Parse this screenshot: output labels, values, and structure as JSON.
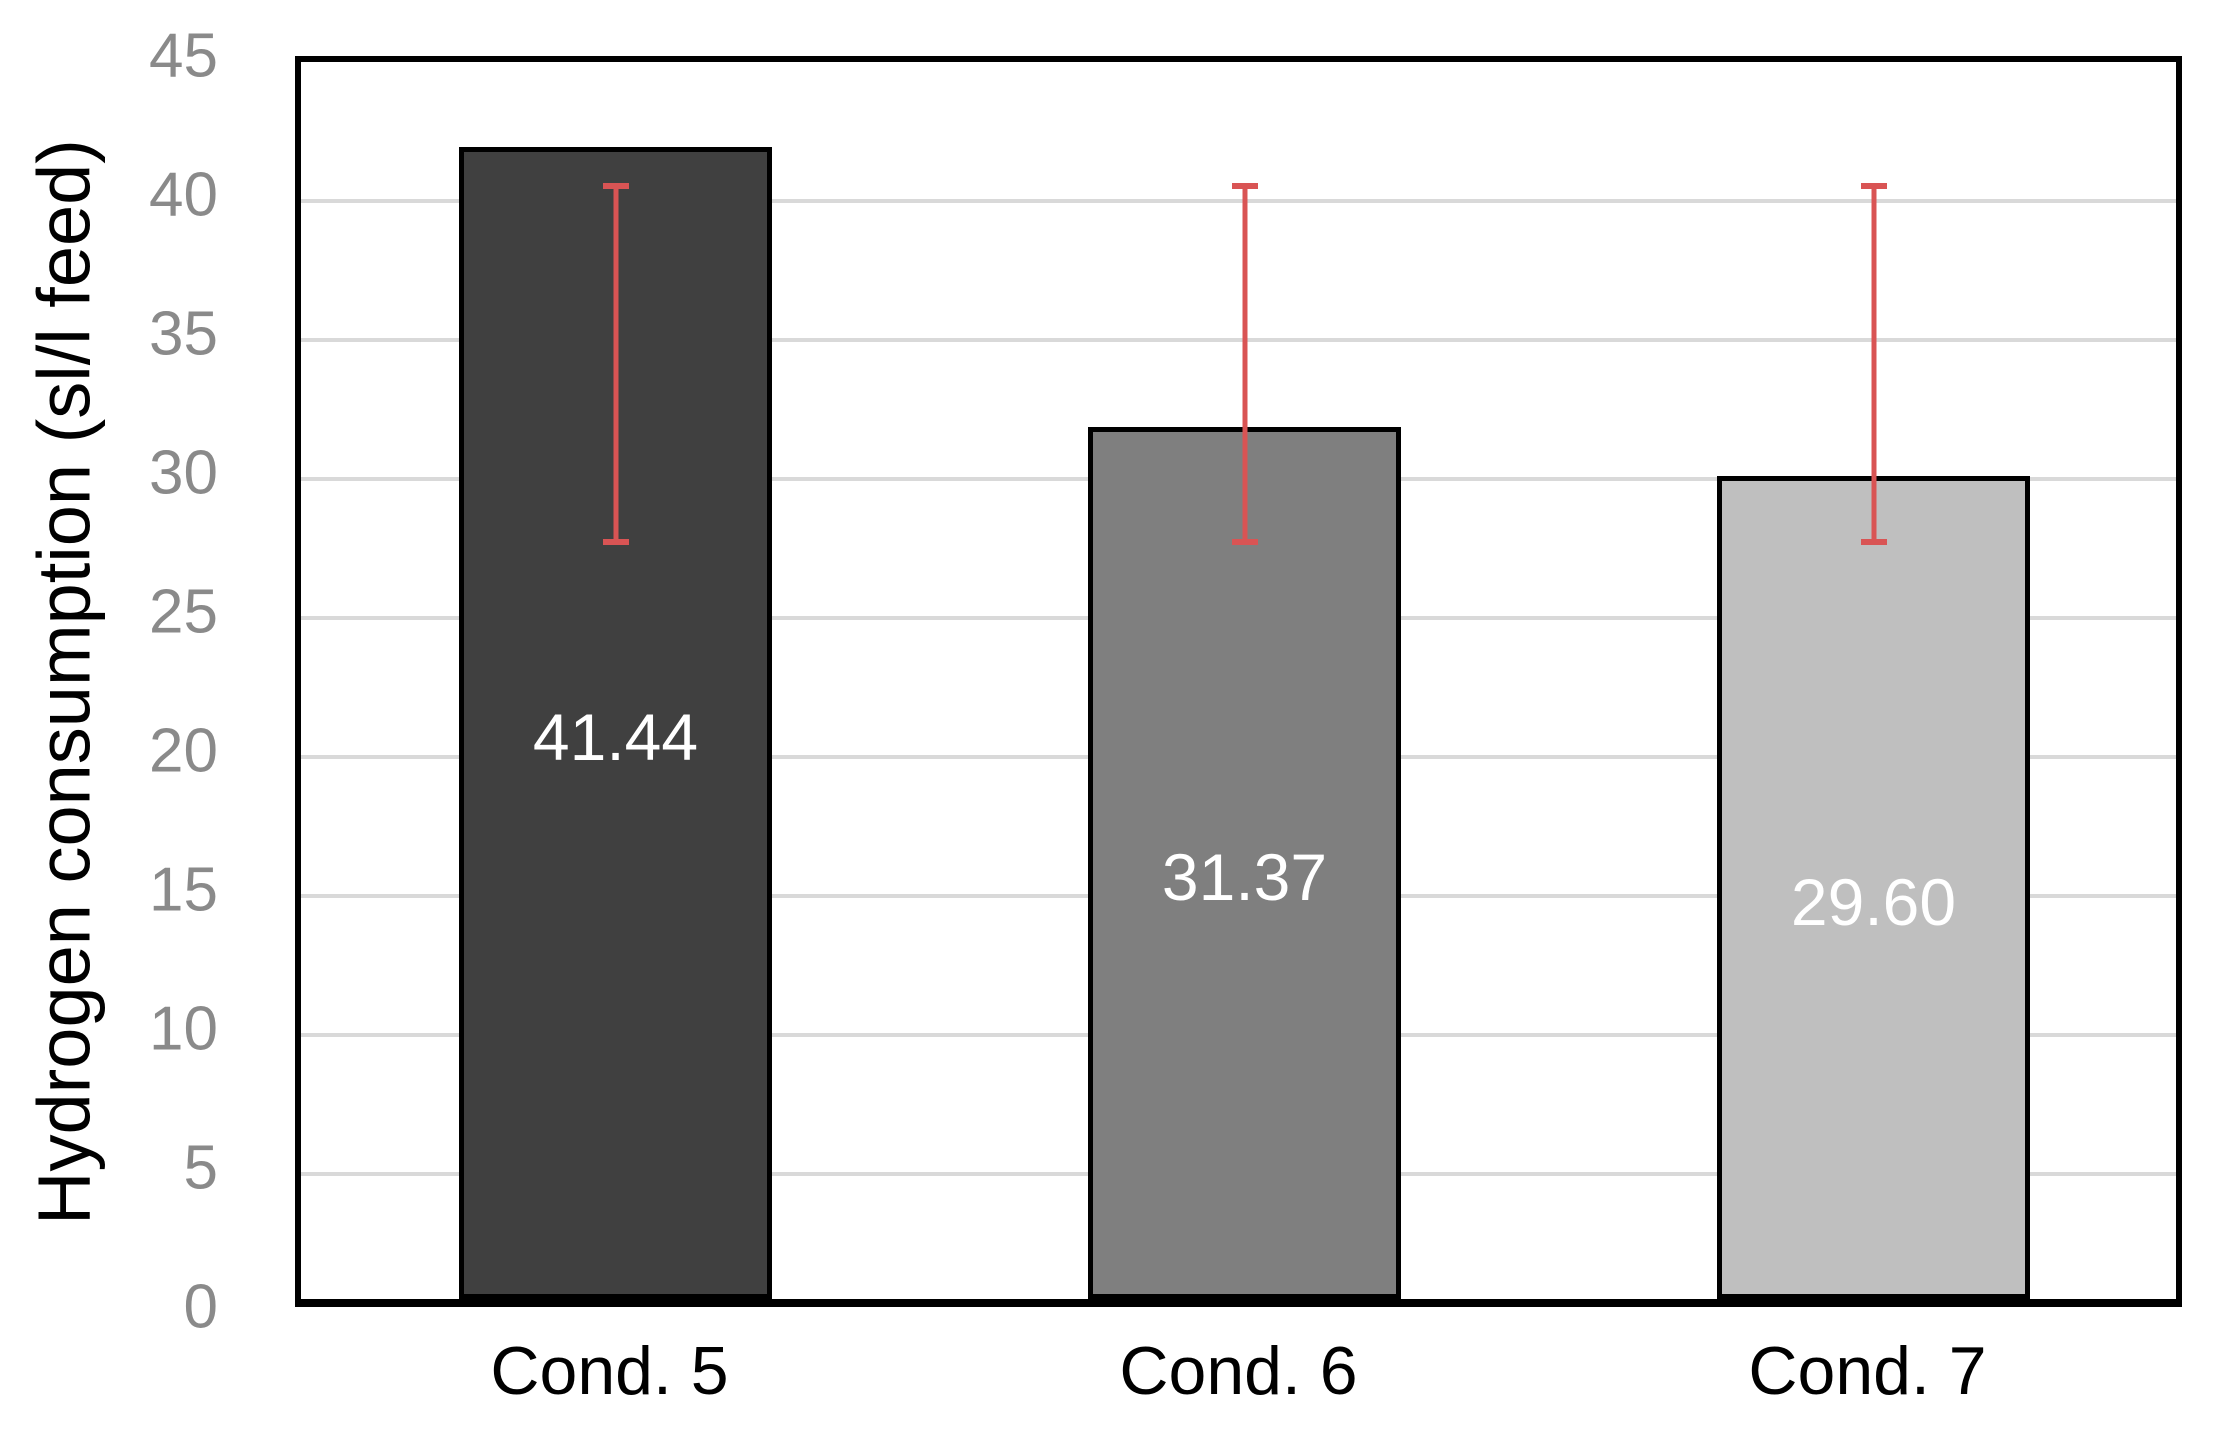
{
  "chart_data": {
    "type": "bar",
    "title": "",
    "xlabel": "",
    "ylabel": "Hydrogen consumption (sl/l feed)",
    "categories": [
      "Cond. 5",
      "Cond. 6",
      "Cond. 7"
    ],
    "values": [
      41.44,
      31.37,
      29.6
    ],
    "data_labels": [
      "41.44",
      "31.37",
      "29.60"
    ],
    "ylim": [
      0,
      45
    ],
    "yticks": [
      0,
      5,
      10,
      15,
      20,
      25,
      30,
      35,
      40,
      45
    ],
    "grid": true,
    "legend_position": "none",
    "bar_colors": [
      "#404040",
      "#7F7F7F",
      "#BFBFBF"
    ],
    "bar_border_color": "#000000",
    "data_label_color": "#FFFFFF",
    "gridline_color": "#D9D9D9",
    "plot_border_color": "#000000",
    "ytick_label_color": "#8A8A8A",
    "category_label_color": "#000000",
    "axis_title_color": "#000000",
    "error_bars": {
      "style": "standard-deviation-about-series-mean",
      "low": 27.75,
      "high": 40.53,
      "color": "#D95454",
      "applies_to": "all-bars"
    }
  }
}
